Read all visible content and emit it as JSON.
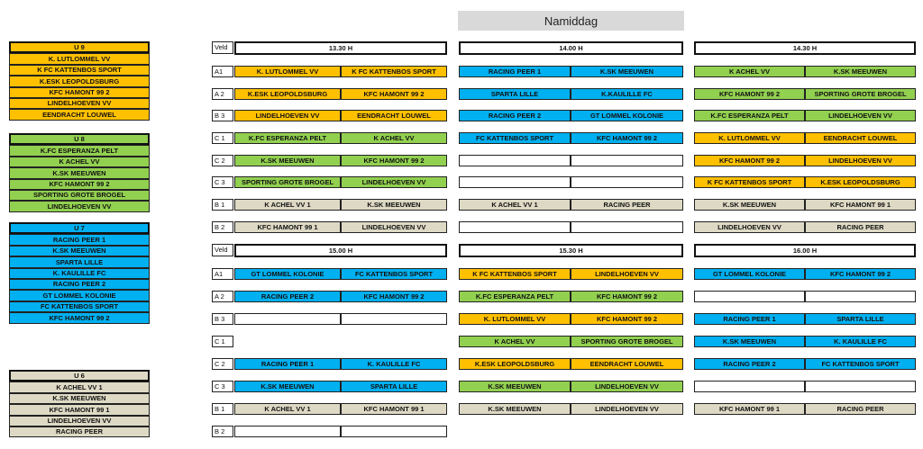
{
  "title": "Namiddag",
  "colors": {
    "u9": "#ffc000",
    "u8": "#92d050",
    "u7": "#00b0f0",
    "u6": "#ddd9c4",
    "empty": "#ffffff"
  },
  "teams": {
    "u9": {
      "name": "U 9",
      "items": [
        "K. LUTLOMMEL VV",
        "K FC KATTENBOS SPORT",
        "K.ESK LEOPOLDSBURG",
        "KFC HAMONT 99 2",
        "LINDELHOEVEN VV",
        "EENDRACHT LOUWEL"
      ]
    },
    "u8": {
      "name": "U 8",
      "items": [
        "K.FC ESPERANZA PELT",
        "K ACHEL VV",
        "K.SK MEEUWEN",
        "KFC HAMONT 99 2",
        "SPORTING GROTE BROGEL",
        "LINDELHOEVEN VV"
      ]
    },
    "u7": {
      "name": "U 7",
      "items": [
        "RACING PEER 1",
        "K.SK MEEUWEN",
        "SPARTA LILLE",
        "K. KAULILLE FC",
        "RACING PEER 2",
        "GT LOMMEL KOLONIE",
        "FC KATTENBOS SPORT",
        "KFC HAMONT 99 2"
      ]
    },
    "u6": {
      "name": "U 6",
      "items": [
        "K ACHEL VV 1",
        "K.SK MEEUWEN",
        "KFC HAMONT 99 1",
        "LINDELHOEVEN VV",
        "RACING PEER"
      ]
    }
  },
  "schedule": [
    {
      "veld_label": "Veld",
      "times": [
        "13.30 H",
        "14.00 H",
        "14.30 H"
      ],
      "rows": [
        {
          "field": "A1",
          "slots": [
            {
              "c": "u9",
              "h": "K. LUTLOMMEL VV",
              "a": "K FC KATTENBOS SPORT"
            },
            {
              "c": "u7",
              "h": "RACING PEER 1",
              "a": "K.SK MEEUWEN"
            },
            {
              "c": "u8",
              "h": "K ACHEL VV",
              "a": "K.SK MEEUWEN"
            }
          ]
        },
        {
          "field": "A 2",
          "slots": [
            {
              "c": "u9",
              "h": "K.ESK LEOPOLDSBURG",
              "a": "KFC HAMONT 99 2"
            },
            {
              "c": "u7",
              "h": "SPARTA LILLE",
              "a": "K.KAULILLE FC"
            },
            {
              "c": "u8",
              "h": "KFC HAMONT 99 2",
              "a": "SPORTING GROTE BROGEL"
            }
          ]
        },
        {
          "field": "B 3",
          "slots": [
            {
              "c": "u9",
              "h": "LINDELHOEVEN VV",
              "a": "EENDRACHT LOUWEL"
            },
            {
              "c": "u7",
              "h": "RACING PEER 2",
              "a": "GT LOMMEL KOLONIE"
            },
            {
              "c": "u8",
              "h": "K.FC ESPERANZA PELT",
              "a": "LINDELHOEVEN VV"
            }
          ]
        },
        {
          "field": "C 1",
          "slots": [
            {
              "c": "u8",
              "h": "K.FC ESPERANZA PELT",
              "a": "K ACHEL VV"
            },
            {
              "c": "u7",
              "h": "FC KATTENBOS SPORT",
              "a": "KFC HAMONT 99 2"
            },
            {
              "c": "u9",
              "h": "K. LUTLOMMEL VV",
              "a": "EENDRACHT LOUWEL"
            }
          ]
        },
        {
          "field": "C 2",
          "slots": [
            {
              "c": "u8",
              "h": "K.SK MEEUWEN",
              "a": "KFC HAMONT 99 2"
            },
            {
              "c": "empty",
              "h": "",
              "a": ""
            },
            {
              "c": "u9",
              "h": "KFC HAMONT 99 2",
              "a": "LINDELHOEVEN VV"
            }
          ]
        },
        {
          "field": "C 3",
          "slots": [
            {
              "c": "u8",
              "h": "SPORTING GROTE BROGEL",
              "a": "LINDELHOEVEN VV"
            },
            {
              "c": "empty",
              "h": "",
              "a": ""
            },
            {
              "c": "u9",
              "h": "K FC KATTENBOS SPORT",
              "a": "K.ESK LEOPOLDSBURG"
            }
          ]
        },
        {
          "field": "B 1",
          "slots": [
            {
              "c": "u6",
              "h": "K ACHEL VV 1",
              "a": "K.SK MEEUWEN"
            },
            {
              "c": "u6",
              "h": "K ACHEL VV 1",
              "a": "RACING PEER"
            },
            {
              "c": "u6",
              "h": "K.SK MEEUWEN",
              "a": "KFC HAMONT 99 1"
            }
          ]
        },
        {
          "field": "B 2",
          "slots": [
            {
              "c": "u6",
              "h": "KFC HAMONT 99 1",
              "a": "LINDELHOEVEN VV"
            },
            {
              "c": "empty",
              "h": "",
              "a": ""
            },
            {
              "c": "u6",
              "h": "LINDELHOEVEN VV",
              "a": "RACING PEER"
            }
          ]
        }
      ]
    },
    {
      "veld_label": "Veld",
      "times": [
        "15.00 H",
        "15.30 H",
        "16.00 H"
      ],
      "rows": [
        {
          "field": "A1",
          "slots": [
            {
              "c": "u7",
              "h": "GT LOMMEL KOLONIE",
              "a": "FC KATTENBOS SPORT"
            },
            {
              "c": "u9",
              "h": "K FC KATTENBOS SPORT",
              "a": "LINDELHOEVEN VV"
            },
            {
              "c": "u7",
              "h": "GT LOMMEL KOLONIE",
              "a": "KFC HAMONT 99 2"
            }
          ]
        },
        {
          "field": "A 2",
          "slots": [
            {
              "c": "u7",
              "h": "RACING PEER 2",
              "a": "KFC HAMONT 99 2"
            },
            {
              "c": "u8",
              "h": "K.FC ESPERANZA PELT",
              "a": "KFC HAMONT 99 2"
            },
            {
              "c": "empty",
              "h": "",
              "a": ""
            }
          ]
        },
        {
          "field": "B 3",
          "slots": [
            {
              "c": "empty",
              "h": "",
              "a": ""
            },
            {
              "c": "u9",
              "h": "K. LUTLOMMEL VV",
              "a": "KFC HAMONT 99 2"
            },
            {
              "c": "u7",
              "h": "RACING PEER 1",
              "a": "SPARTA LILLE"
            }
          ]
        },
        {
          "field": "C 1",
          "slots": [
            {
              "c": "none",
              "h": "",
              "a": ""
            },
            {
              "c": "u8",
              "h": "K ACHEL VV",
              "a": "SPORTING GROTE BROGEL"
            },
            {
              "c": "u7",
              "h": "K.SK MEEUWEN",
              "a": "K. KAULILLE FC"
            }
          ]
        },
        {
          "field": "C 2",
          "slots": [
            {
              "c": "u7",
              "h": "RACING PEER 1",
              "a": "K. KAULILLE FC"
            },
            {
              "c": "u9",
              "h": "K.ESK LEOPOLDSBURG",
              "a": "EENDRACHT LOUWEL"
            },
            {
              "c": "u7",
              "h": "RACING PEER 2",
              "a": "FC KATTENBOS SPORT"
            }
          ]
        },
        {
          "field": "C 3",
          "slots": [
            {
              "c": "u7",
              "h": "K.SK MEEUWEN",
              "a": "SPARTA LILLE"
            },
            {
              "c": "u8",
              "h": "K.SK MEEUWEN",
              "a": "LINDELHOEVEN VV"
            },
            {
              "c": "empty",
              "h": "",
              "a": ""
            }
          ]
        },
        {
          "field": "B 1",
          "slots": [
            {
              "c": "u6",
              "h": "K ACHEL VV 1",
              "a": "KFC HAMONT 99 1"
            },
            {
              "c": "u6",
              "h": "K.SK MEEUWEN",
              "a": "LINDELHOEVEN VV"
            },
            {
              "c": "u6",
              "h": "KFC HAMONT 99 1",
              "a": "RACING PEER"
            }
          ]
        },
        {
          "field": "B 2",
          "slots": [
            {
              "c": "empty",
              "h": "",
              "a": ""
            },
            {
              "c": "none",
              "h": "",
              "a": ""
            },
            {
              "c": "none",
              "h": "",
              "a": ""
            }
          ]
        }
      ]
    }
  ]
}
